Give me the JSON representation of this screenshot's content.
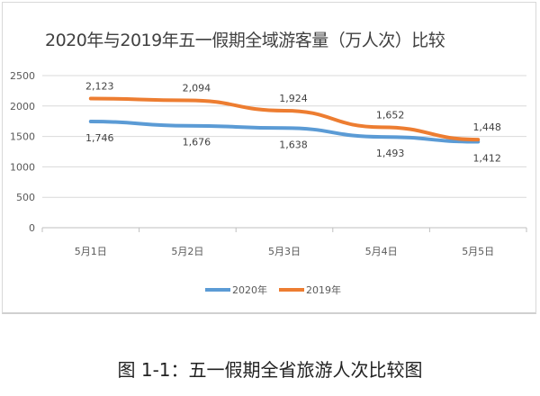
{
  "chart_data": {
    "type": "line",
    "title": "2020年与2019年五一假期全域游客量（万人次）比较",
    "categories": [
      "5月1日",
      "5月2日",
      "5月3日",
      "5月4日",
      "5月5日"
    ],
    "series": [
      {
        "name": "2020年",
        "color": "#5b9bd5",
        "values": [
          1746,
          1676,
          1638,
          1493,
          1412
        ],
        "labels": [
          "1,746",
          "1,676",
          "1,638",
          "1,493",
          "1,412"
        ]
      },
      {
        "name": "2019年",
        "color": "#ed7d31",
        "values": [
          2123,
          2094,
          1924,
          1652,
          1448
        ],
        "labels": [
          "2,123",
          "2,094",
          "1,924",
          "1,652",
          "1,448"
        ]
      }
    ],
    "ylim": [
      0,
      2500
    ],
    "yticks": [
      "0",
      "500",
      "1000",
      "1500",
      "2000",
      "2500"
    ],
    "grid": true,
    "legend": "bottom",
    "xlabel": "",
    "ylabel": ""
  },
  "caption": "图 1-1：五一假期全省旅游人次比较图"
}
